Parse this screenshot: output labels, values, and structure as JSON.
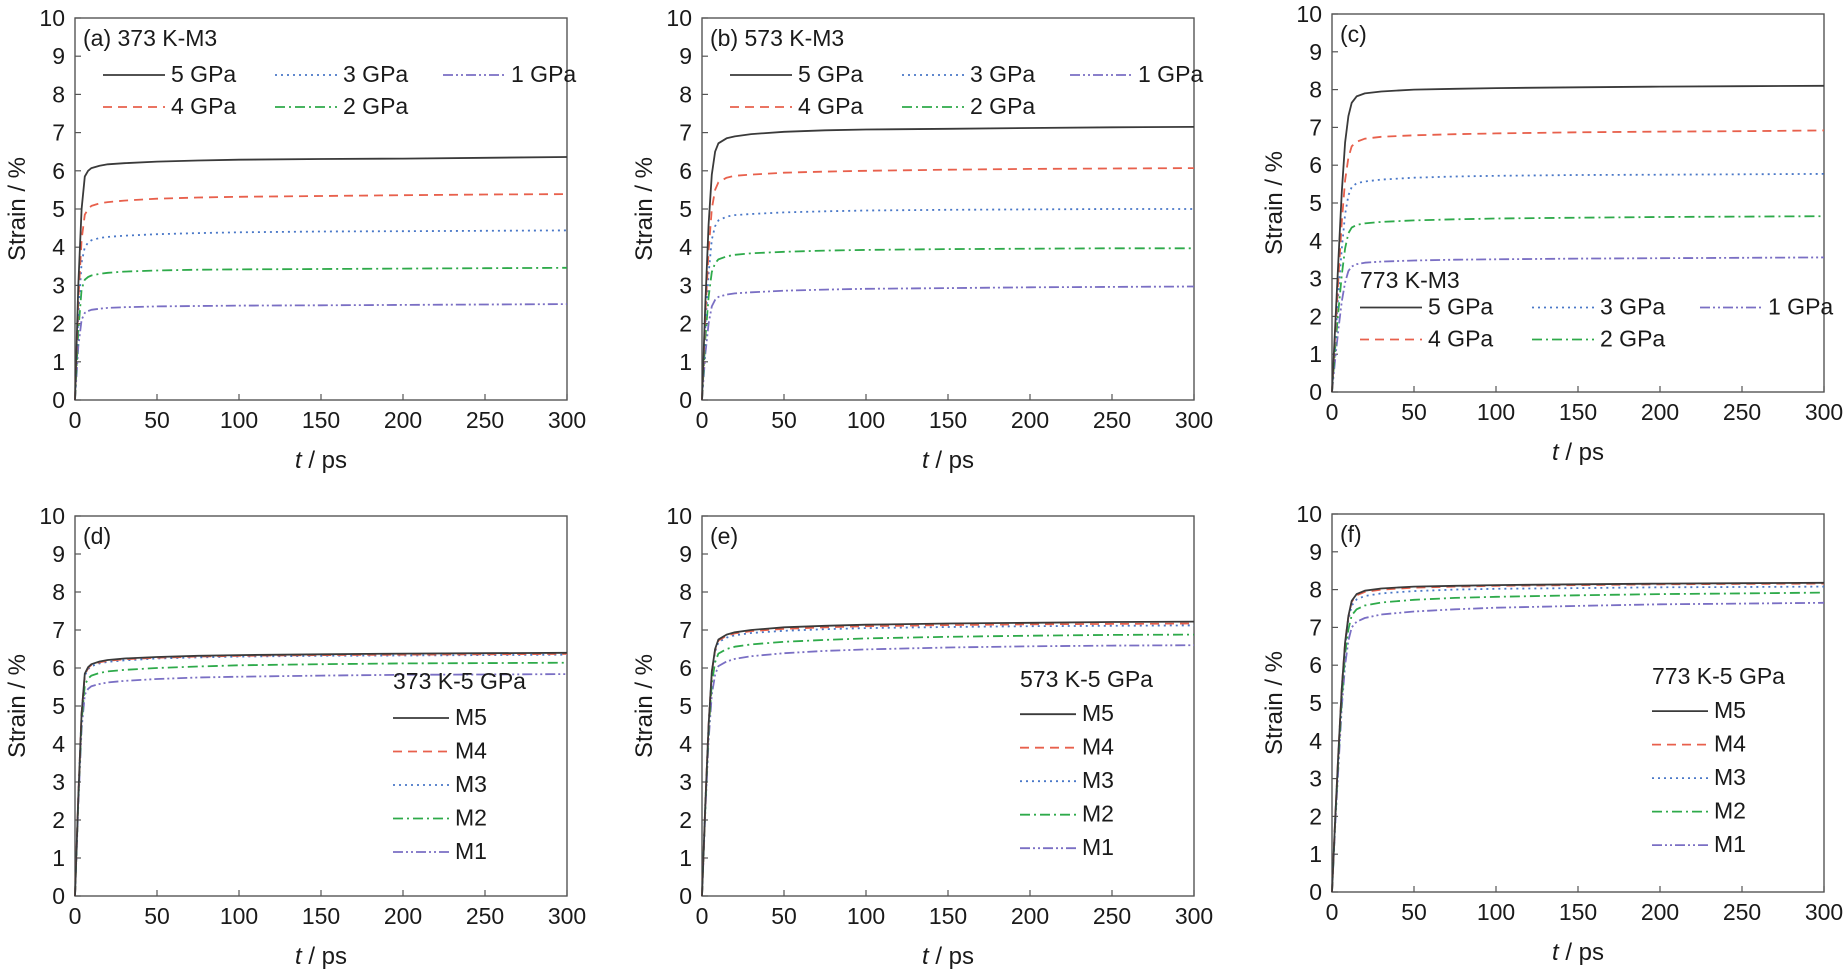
{
  "styles": {
    "5 GPa": {
      "color": "#3a3a3a",
      "dash": ""
    },
    "4 GPa": {
      "color": "#e8604c",
      "dash": "9,6"
    },
    "3 GPa": {
      "color": "#4a78c8",
      "dash": "2,4"
    },
    "2 GPa": {
      "color": "#2eaa4a",
      "dash": "10,4,2,4"
    },
    "1 GPa": {
      "color": "#7a6fc4",
      "dash": "10,3,2,3,2,3"
    },
    "M5": {
      "color": "#3a3a3a",
      "dash": ""
    },
    "M4": {
      "color": "#e8604c",
      "dash": "9,6"
    },
    "M3": {
      "color": "#4a78c8",
      "dash": "2,4"
    },
    "M2": {
      "color": "#2eaa4a",
      "dash": "10,4,2,4"
    },
    "M1": {
      "color": "#7a6fc4",
      "dash": "10,3,2,3,2,3"
    }
  },
  "chart_data": [
    {
      "type": "line",
      "panel_label": "(a) 373 K-M3",
      "legend_title": "",
      "legend_layout": "grid-top-left",
      "xlabel": "t / ps",
      "ylabel": "Strain / %",
      "xlim": [
        0,
        300
      ],
      "ylim": [
        0,
        10
      ],
      "xticks": [
        "0",
        "50",
        "100",
        "150",
        "200",
        "250",
        "300"
      ],
      "yticks": [
        "0",
        "1",
        "2",
        "3",
        "4",
        "5",
        "6",
        "7",
        "8",
        "9",
        "10"
      ],
      "x": [
        0,
        2,
        4,
        6,
        8,
        10,
        15,
        20,
        30,
        50,
        75,
        100,
        150,
        200,
        250,
        300
      ],
      "series": [
        {
          "name": "5 GPa",
          "values": [
            0,
            3.0,
            5.0,
            5.85,
            6.0,
            6.07,
            6.13,
            6.17,
            6.2,
            6.24,
            6.27,
            6.29,
            6.31,
            6.32,
            6.34,
            6.36
          ]
        },
        {
          "name": "4 GPa",
          "values": [
            0,
            2.6,
            4.2,
            4.85,
            5.0,
            5.08,
            5.15,
            5.18,
            5.22,
            5.27,
            5.3,
            5.32,
            5.34,
            5.36,
            5.38,
            5.39
          ]
        },
        {
          "name": "3 GPa",
          "values": [
            0,
            2.2,
            3.6,
            4.0,
            4.12,
            4.18,
            4.24,
            4.27,
            4.3,
            4.34,
            4.37,
            4.39,
            4.41,
            4.42,
            4.43,
            4.44
          ]
        },
        {
          "name": "2 GPa",
          "values": [
            0,
            1.8,
            2.9,
            3.15,
            3.22,
            3.26,
            3.3,
            3.33,
            3.36,
            3.39,
            3.41,
            3.42,
            3.43,
            3.44,
            3.45,
            3.46
          ]
        },
        {
          "name": "1 GPa",
          "values": [
            0,
            1.4,
            2.1,
            2.28,
            2.33,
            2.36,
            2.39,
            2.41,
            2.43,
            2.45,
            2.46,
            2.47,
            2.48,
            2.49,
            2.5,
            2.51
          ]
        }
      ]
    },
    {
      "type": "line",
      "panel_label": "(b) 573 K-M3",
      "legend_title": "",
      "legend_layout": "grid-top-left",
      "xlabel": "t / ps",
      "ylabel": "Strain / %",
      "xlim": [
        0,
        300
      ],
      "ylim": [
        0,
        10
      ],
      "xticks": [
        "0",
        "50",
        "100",
        "150",
        "200",
        "250",
        "300"
      ],
      "yticks": [
        "0",
        "1",
        "2",
        "3",
        "4",
        "5",
        "6",
        "7",
        "8",
        "9",
        "10"
      ],
      "x": [
        0,
        2,
        4,
        6,
        8,
        10,
        15,
        20,
        30,
        50,
        75,
        100,
        150,
        200,
        250,
        300
      ],
      "series": [
        {
          "name": "5 GPa",
          "values": [
            0,
            2.5,
            4.6,
            5.9,
            6.5,
            6.72,
            6.85,
            6.9,
            6.96,
            7.02,
            7.06,
            7.08,
            7.1,
            7.12,
            7.14,
            7.15
          ]
        },
        {
          "name": "4 GPa",
          "values": [
            0,
            2.2,
            3.9,
            5.0,
            5.5,
            5.7,
            5.82,
            5.87,
            5.9,
            5.95,
            5.98,
            6.0,
            6.03,
            6.05,
            6.06,
            6.07
          ]
        },
        {
          "name": "3 GPa",
          "values": [
            0,
            1.9,
            3.3,
            4.2,
            4.55,
            4.7,
            4.8,
            4.84,
            4.87,
            4.91,
            4.94,
            4.96,
            4.98,
            4.99,
            5.0,
            5.0
          ]
        },
        {
          "name": "2 GPa",
          "values": [
            0,
            1.6,
            2.7,
            3.35,
            3.58,
            3.68,
            3.76,
            3.8,
            3.84,
            3.88,
            3.91,
            3.93,
            3.95,
            3.96,
            3.97,
            3.97
          ]
        },
        {
          "name": "1 GPa",
          "values": [
            0,
            1.2,
            2.0,
            2.45,
            2.62,
            2.7,
            2.76,
            2.79,
            2.82,
            2.86,
            2.89,
            2.91,
            2.93,
            2.95,
            2.96,
            2.97
          ]
        }
      ]
    },
    {
      "type": "line",
      "panel_label": "(c)",
      "legend_title": "773 K-M3",
      "legend_layout": "grid-lower",
      "xlabel": "t / ps",
      "ylabel": "Strain / %",
      "xlim": [
        0,
        300
      ],
      "ylim": [
        0,
        10
      ],
      "xticks": [
        "0",
        "50",
        "100",
        "150",
        "200",
        "250",
        "300"
      ],
      "yticks": [
        "0",
        "1",
        "2",
        "3",
        "4",
        "5",
        "6",
        "7",
        "8",
        "9",
        "10"
      ],
      "x": [
        0,
        2,
        4,
        6,
        8,
        10,
        12,
        15,
        20,
        30,
        50,
        75,
        100,
        150,
        200,
        250,
        300
      ],
      "series": [
        {
          "name": "5 GPa",
          "values": [
            0,
            1.8,
            3.6,
            5.3,
            6.6,
            7.3,
            7.65,
            7.82,
            7.9,
            7.95,
            8.0,
            8.02,
            8.04,
            8.06,
            8.08,
            8.09,
            8.1
          ]
        },
        {
          "name": "4 GPa",
          "values": [
            0,
            1.6,
            3.1,
            4.5,
            5.6,
            6.2,
            6.5,
            6.62,
            6.7,
            6.75,
            6.79,
            6.82,
            6.84,
            6.87,
            6.89,
            6.9,
            6.92
          ]
        },
        {
          "name": "3 GPa",
          "values": [
            0,
            1.4,
            2.7,
            3.8,
            4.7,
            5.2,
            5.42,
            5.52,
            5.57,
            5.62,
            5.67,
            5.7,
            5.72,
            5.74,
            5.75,
            5.76,
            5.77
          ]
        },
        {
          "name": "2 GPa",
          "values": [
            0,
            1.2,
            2.2,
            3.1,
            3.8,
            4.2,
            4.35,
            4.42,
            4.46,
            4.5,
            4.54,
            4.57,
            4.59,
            4.61,
            4.63,
            4.64,
            4.65
          ]
        },
        {
          "name": "1 GPa",
          "values": [
            0,
            0.9,
            1.7,
            2.4,
            2.9,
            3.2,
            3.32,
            3.38,
            3.42,
            3.45,
            3.48,
            3.5,
            3.51,
            3.53,
            3.54,
            3.55,
            3.56
          ]
        }
      ]
    },
    {
      "type": "line",
      "panel_label": "(d)",
      "legend_title": "373 K-5 GPa",
      "legend_layout": "list-right",
      "xlabel": "t / ps",
      "ylabel": "Strain / %",
      "xlim": [
        0,
        300
      ],
      "ylim": [
        0,
        10
      ],
      "xticks": [
        "0",
        "50",
        "100",
        "150",
        "200",
        "250",
        "300"
      ],
      "yticks": [
        "0",
        "1",
        "2",
        "3",
        "4",
        "5",
        "6",
        "7",
        "8",
        "9",
        "10"
      ],
      "x": [
        0,
        2,
        4,
        6,
        8,
        10,
        15,
        20,
        30,
        50,
        75,
        100,
        150,
        200,
        250,
        300
      ],
      "series": [
        {
          "name": "M5",
          "values": [
            0,
            2.6,
            4.8,
            5.85,
            6.02,
            6.1,
            6.17,
            6.21,
            6.25,
            6.29,
            6.32,
            6.34,
            6.36,
            6.38,
            6.39,
            6.4
          ]
        },
        {
          "name": "M4",
          "values": [
            0,
            2.6,
            4.8,
            5.82,
            6.0,
            6.08,
            6.15,
            6.19,
            6.23,
            6.27,
            6.3,
            6.32,
            6.34,
            6.35,
            6.36,
            6.37
          ]
        },
        {
          "name": "M3",
          "values": [
            0,
            2.6,
            4.8,
            5.8,
            5.97,
            6.05,
            6.12,
            6.16,
            6.2,
            6.25,
            6.28,
            6.3,
            6.32,
            6.33,
            6.34,
            6.35
          ]
        },
        {
          "name": "M2",
          "values": [
            0,
            2.5,
            4.6,
            5.55,
            5.72,
            5.8,
            5.87,
            5.91,
            5.95,
            6.0,
            6.04,
            6.07,
            6.1,
            6.12,
            6.13,
            6.14
          ]
        },
        {
          "name": "M1",
          "values": [
            0,
            2.4,
            4.4,
            5.3,
            5.45,
            5.52,
            5.58,
            5.62,
            5.66,
            5.71,
            5.75,
            5.77,
            5.8,
            5.82,
            5.83,
            5.84
          ]
        }
      ]
    },
    {
      "type": "line",
      "panel_label": "(e)",
      "legend_title": "573 K-5 GPa",
      "legend_layout": "list-right",
      "xlabel": "t / ps",
      "ylabel": "Strain / %",
      "xlim": [
        0,
        300
      ],
      "ylim": [
        0,
        10
      ],
      "xticks": [
        "0",
        "50",
        "100",
        "150",
        "200",
        "250",
        "300"
      ],
      "yticks": [
        "0",
        "1",
        "2",
        "3",
        "4",
        "5",
        "6",
        "7",
        "8",
        "9",
        "10"
      ],
      "x": [
        0,
        2,
        4,
        6,
        8,
        10,
        15,
        20,
        30,
        50,
        75,
        100,
        150,
        200,
        250,
        300
      ],
      "series": [
        {
          "name": "M5",
          "values": [
            0,
            2.4,
            4.5,
            5.9,
            6.5,
            6.75,
            6.88,
            6.94,
            7.0,
            7.07,
            7.11,
            7.14,
            7.17,
            7.19,
            7.21,
            7.22
          ]
        },
        {
          "name": "M4",
          "values": [
            0,
            2.4,
            4.5,
            5.88,
            6.47,
            6.72,
            6.85,
            6.91,
            6.97,
            7.03,
            7.07,
            7.1,
            7.13,
            7.15,
            7.16,
            7.17
          ]
        },
        {
          "name": "M3",
          "values": [
            0,
            2.4,
            4.5,
            5.85,
            6.43,
            6.68,
            6.8,
            6.86,
            6.92,
            6.98,
            7.02,
            7.05,
            7.08,
            7.1,
            7.11,
            7.12
          ]
        },
        {
          "name": "M2",
          "values": [
            0,
            2.3,
            4.3,
            5.6,
            6.15,
            6.38,
            6.5,
            6.56,
            6.62,
            6.69,
            6.74,
            6.78,
            6.82,
            6.85,
            6.87,
            6.88
          ]
        },
        {
          "name": "M1",
          "values": [
            0,
            2.2,
            4.1,
            5.3,
            5.82,
            6.05,
            6.17,
            6.24,
            6.31,
            6.39,
            6.45,
            6.49,
            6.54,
            6.57,
            6.59,
            6.6
          ]
        }
      ]
    },
    {
      "type": "line",
      "panel_label": "(f)",
      "legend_title": "773 K-5 GPa",
      "legend_layout": "list-right",
      "xlabel": "t / ps",
      "ylabel": "Strain / %",
      "xlim": [
        0,
        300
      ],
      "ylim": [
        0,
        10
      ],
      "xticks": [
        "0",
        "50",
        "100",
        "150",
        "200",
        "250",
        "300"
      ],
      "yticks": [
        "0",
        "1",
        "2",
        "3",
        "4",
        "5",
        "6",
        "7",
        "8",
        "9",
        "10"
      ],
      "x": [
        0,
        2,
        4,
        6,
        8,
        10,
        12,
        15,
        20,
        30,
        50,
        75,
        100,
        150,
        200,
        250,
        300
      ],
      "series": [
        {
          "name": "M5",
          "values": [
            0,
            2.0,
            3.8,
            5.4,
            6.6,
            7.3,
            7.7,
            7.88,
            7.97,
            8.03,
            8.08,
            8.1,
            8.12,
            8.14,
            8.16,
            8.17,
            8.18
          ]
        },
        {
          "name": "M4",
          "values": [
            0,
            2.0,
            3.8,
            5.4,
            6.6,
            7.28,
            7.68,
            7.85,
            7.94,
            8.0,
            8.05,
            8.08,
            8.1,
            8.12,
            8.14,
            8.15,
            8.16
          ]
        },
        {
          "name": "M3",
          "values": [
            0,
            2.0,
            3.7,
            5.3,
            6.5,
            7.2,
            7.58,
            7.74,
            7.83,
            7.9,
            7.96,
            8.0,
            8.02,
            8.04,
            8.06,
            8.07,
            8.08
          ]
        },
        {
          "name": "M2",
          "values": [
            0,
            1.9,
            3.6,
            5.1,
            6.3,
            6.95,
            7.32,
            7.48,
            7.58,
            7.66,
            7.73,
            7.78,
            7.81,
            7.85,
            7.88,
            7.9,
            7.92
          ]
        },
        {
          "name": "M1",
          "values": [
            0,
            1.8,
            3.4,
            4.9,
            6.0,
            6.65,
            7.0,
            7.15,
            7.25,
            7.34,
            7.42,
            7.48,
            7.52,
            7.57,
            7.61,
            7.63,
            7.65
          ]
        }
      ]
    }
  ]
}
